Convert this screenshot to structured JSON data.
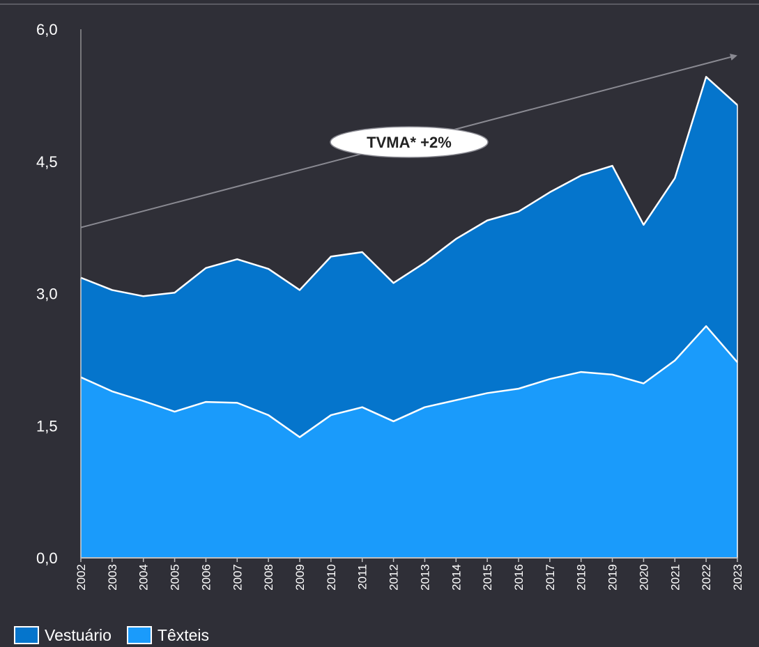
{
  "chart_data": {
    "type": "area",
    "stacked": true,
    "x": [
      "2002",
      "2003",
      "2004",
      "2005",
      "2006",
      "2007",
      "2008",
      "2009",
      "2010",
      "2011",
      "2012",
      "2013",
      "2014",
      "2015",
      "2016",
      "2017",
      "2018",
      "2019",
      "2020",
      "2021",
      "2022",
      "2023"
    ],
    "series": [
      {
        "name": "Têxteis",
        "color": "#1a9bfb",
        "values": [
          2.05,
          1.89,
          1.78,
          1.66,
          1.77,
          1.76,
          1.62,
          1.37,
          1.62,
          1.71,
          1.55,
          1.71,
          1.79,
          1.87,
          1.92,
          2.03,
          2.11,
          2.08,
          1.98,
          2.24,
          2.63,
          2.22
        ]
      },
      {
        "name": "Vestuário",
        "color": "#0575cc",
        "values": [
          1.13,
          1.15,
          1.19,
          1.35,
          1.52,
          1.63,
          1.66,
          1.67,
          1.8,
          1.76,
          1.57,
          1.64,
          1.83,
          1.96,
          2.01,
          2.12,
          2.23,
          2.37,
          1.8,
          2.07,
          2.83,
          2.92
        ]
      }
    ],
    "y_ticks": [
      "0,0",
      "1,5",
      "3,0",
      "4,5",
      "6,0"
    ],
    "ylim": [
      0,
      6
    ],
    "xlabel": "",
    "ylabel": "",
    "grid": false,
    "legend_position": "bottom-left",
    "annotation": {
      "text": "TVMA* +2%",
      "trend_from": 3.75,
      "trend_to": 5.7
    }
  }
}
